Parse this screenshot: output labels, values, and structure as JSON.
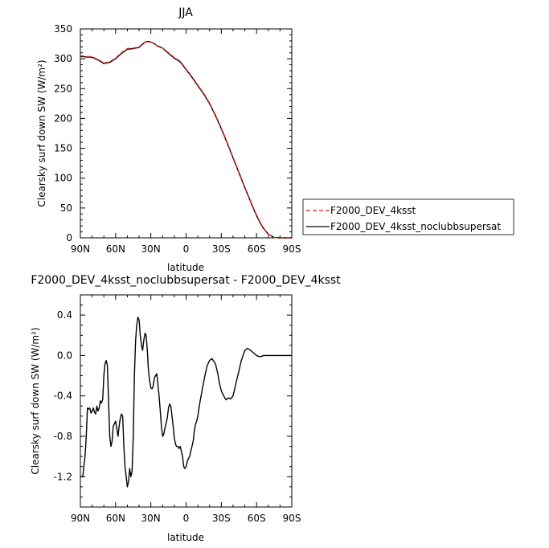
{
  "chart_data": [
    {
      "type": "line",
      "title": "JJA",
      "xlabel": "latitude",
      "ylabel": "Clearsky surf down SW (W/m²)",
      "xlim": [
        90,
        -90
      ],
      "ylim": [
        0,
        350
      ],
      "x_ticks": [
        {
          "value": 90,
          "label": "90N"
        },
        {
          "value": 60,
          "label": "60N"
        },
        {
          "value": 30,
          "label": "30N"
        },
        {
          "value": 0,
          "label": "0"
        },
        {
          "value": -30,
          "label": "30S"
        },
        {
          "value": -60,
          "label": "60S"
        },
        {
          "value": -90,
          "label": "90S"
        }
      ],
      "y_ticks": [
        0,
        50,
        100,
        150,
        200,
        250,
        300,
        350
      ],
      "legend_position": "right",
      "series": [
        {
          "name": "F2000_DEV_4ksst",
          "color": "#e0201a",
          "dash": "dashed",
          "x": [
            90,
            85,
            80,
            75,
            70,
            65,
            60,
            55,
            50,
            45,
            40,
            35,
            32,
            30,
            27,
            25,
            20,
            15,
            10,
            5,
            0,
            -5,
            -10,
            -15,
            -20,
            -25,
            -30,
            -35,
            -40,
            -45,
            -50,
            -55,
            -60,
            -65,
            -70,
            -75,
            -80,
            -85,
            -90
          ],
          "y": [
            305,
            304,
            303,
            299,
            293,
            295,
            301,
            310,
            317,
            318,
            320,
            328,
            329,
            328,
            325,
            322,
            318,
            310,
            302,
            296,
            283,
            270,
            256,
            242,
            226,
            206,
            184,
            160,
            135,
            110,
            85,
            61,
            38,
            19,
            6,
            0.5,
            0,
            0,
            0
          ]
        },
        {
          "name": "F2000_DEV_4ksst_noclubbsupersat",
          "color": "#000000",
          "dash": "solid",
          "x": [
            90,
            85,
            80,
            75,
            70,
            65,
            60,
            55,
            50,
            45,
            40,
            35,
            32,
            30,
            27,
            25,
            20,
            15,
            10,
            5,
            0,
            -5,
            -10,
            -15,
            -20,
            -25,
            -30,
            -35,
            -40,
            -45,
            -50,
            -55,
            -60,
            -65,
            -70,
            -75,
            -80,
            -85,
            -90
          ],
          "y": [
            304,
            303,
            302.5,
            298,
            292,
            294,
            300,
            309,
            316,
            317,
            319,
            328,
            329,
            328,
            325,
            322,
            318,
            309,
            301,
            295,
            282,
            269,
            255,
            241,
            225,
            205,
            183,
            159,
            134,
            109,
            84,
            60,
            37,
            18,
            6,
            0.5,
            0,
            0,
            0
          ]
        }
      ]
    },
    {
      "type": "line",
      "title": "F2000_DEV_4ksst_noclubbsupersat - F2000_DEV_4ksst",
      "xlabel": "latitude",
      "ylabel": "Clearsky surf down SW (W/m²)",
      "xlim": [
        90,
        -90
      ],
      "ylim": [
        -1.5,
        0.6
      ],
      "x_ticks": [
        {
          "value": 90,
          "label": "90N"
        },
        {
          "value": 60,
          "label": "60N"
        },
        {
          "value": 30,
          "label": "30N"
        },
        {
          "value": 0,
          "label": "0"
        },
        {
          "value": -30,
          "label": "30S"
        },
        {
          "value": -60,
          "label": "60S"
        },
        {
          "value": -90,
          "label": "90S"
        }
      ],
      "y_ticks": [
        {
          "value": 0.4,
          "label": "0.4"
        },
        {
          "value": 0.0,
          "label": "0.0"
        },
        {
          "value": -0.4,
          "label": "-0.4"
        },
        {
          "value": -0.8,
          "label": "-0.8"
        },
        {
          "value": -1.2,
          "label": "-1.2"
        }
      ],
      "series": [
        {
          "name": "",
          "color": "#000000",
          "dash": "solid",
          "x": [
            90,
            88,
            86,
            85,
            84,
            83,
            82,
            81,
            80,
            79,
            78,
            77,
            76,
            75,
            74,
            73,
            72,
            71,
            70,
            69,
            68,
            67,
            66,
            65,
            64,
            63,
            62,
            60,
            58,
            57,
            56,
            55,
            54,
            53,
            52,
            51,
            50,
            49,
            48,
            47,
            46,
            45,
            44,
            43,
            42,
            41,
            40,
            39,
            38,
            37,
            36,
            35,
            34,
            33,
            32,
            31,
            30,
            29,
            28,
            27,
            26,
            25,
            24,
            23,
            22,
            21,
            20,
            19,
            18,
            16,
            15,
            14,
            13,
            12,
            11,
            10,
            9,
            8,
            7,
            6,
            5,
            4,
            3,
            2,
            1,
            0,
            -1,
            -2,
            -3,
            -4,
            -5,
            -6,
            -7,
            -8,
            -9,
            -10,
            -12,
            -14,
            -16,
            -18,
            -20,
            -22,
            -25,
            -27,
            -28,
            -30,
            -32,
            -34,
            -36,
            -38,
            -40,
            -41,
            -42,
            -43,
            -44,
            -45,
            -47,
            -50,
            -52,
            -54,
            -56,
            -58,
            -60,
            -62,
            -64,
            -66,
            -68,
            -70,
            -72,
            -75,
            -80,
            -85,
            -90
          ],
          "y": [
            -1.2,
            -1.2,
            -1.0,
            -0.8,
            -0.52,
            -0.53,
            -0.52,
            -0.57,
            -0.55,
            -0.52,
            -0.56,
            -0.58,
            -0.5,
            -0.55,
            -0.52,
            -0.45,
            -0.47,
            -0.43,
            -0.2,
            -0.08,
            -0.05,
            -0.1,
            -0.45,
            -0.8,
            -0.9,
            -0.85,
            -0.7,
            -0.65,
            -0.8,
            -0.7,
            -0.62,
            -0.58,
            -0.6,
            -0.9,
            -1.1,
            -1.2,
            -1.3,
            -1.25,
            -1.12,
            -1.2,
            -1.15,
            -0.8,
            -0.2,
            0.15,
            0.3,
            0.38,
            0.35,
            0.2,
            0.1,
            0.05,
            0.15,
            0.22,
            0.2,
            0.05,
            -0.15,
            -0.25,
            -0.32,
            -0.33,
            -0.3,
            -0.22,
            -0.2,
            -0.18,
            -0.28,
            -0.4,
            -0.55,
            -0.7,
            -0.8,
            -0.78,
            -0.72,
            -0.62,
            -0.52,
            -0.48,
            -0.5,
            -0.6,
            -0.7,
            -0.82,
            -0.88,
            -0.9,
            -0.9,
            -0.92,
            -0.9,
            -0.95,
            -1.0,
            -1.1,
            -1.12,
            -1.1,
            -1.05,
            -1.02,
            -1.0,
            -0.95,
            -0.9,
            -0.85,
            -0.75,
            -0.68,
            -0.65,
            -0.6,
            -0.45,
            -0.32,
            -0.2,
            -0.1,
            -0.05,
            -0.03,
            -0.08,
            -0.18,
            -0.25,
            -0.35,
            -0.4,
            -0.44,
            -0.42,
            -0.43,
            -0.4,
            -0.35,
            -0.3,
            -0.25,
            -0.2,
            -0.15,
            -0.05,
            0.05,
            0.07,
            0.06,
            0.04,
            0.02,
            0.0,
            -0.01,
            -0.01,
            0.0,
            0.0,
            0.0,
            0.0,
            0.0,
            0.0,
            0.0,
            0.0
          ]
        }
      ]
    }
  ]
}
